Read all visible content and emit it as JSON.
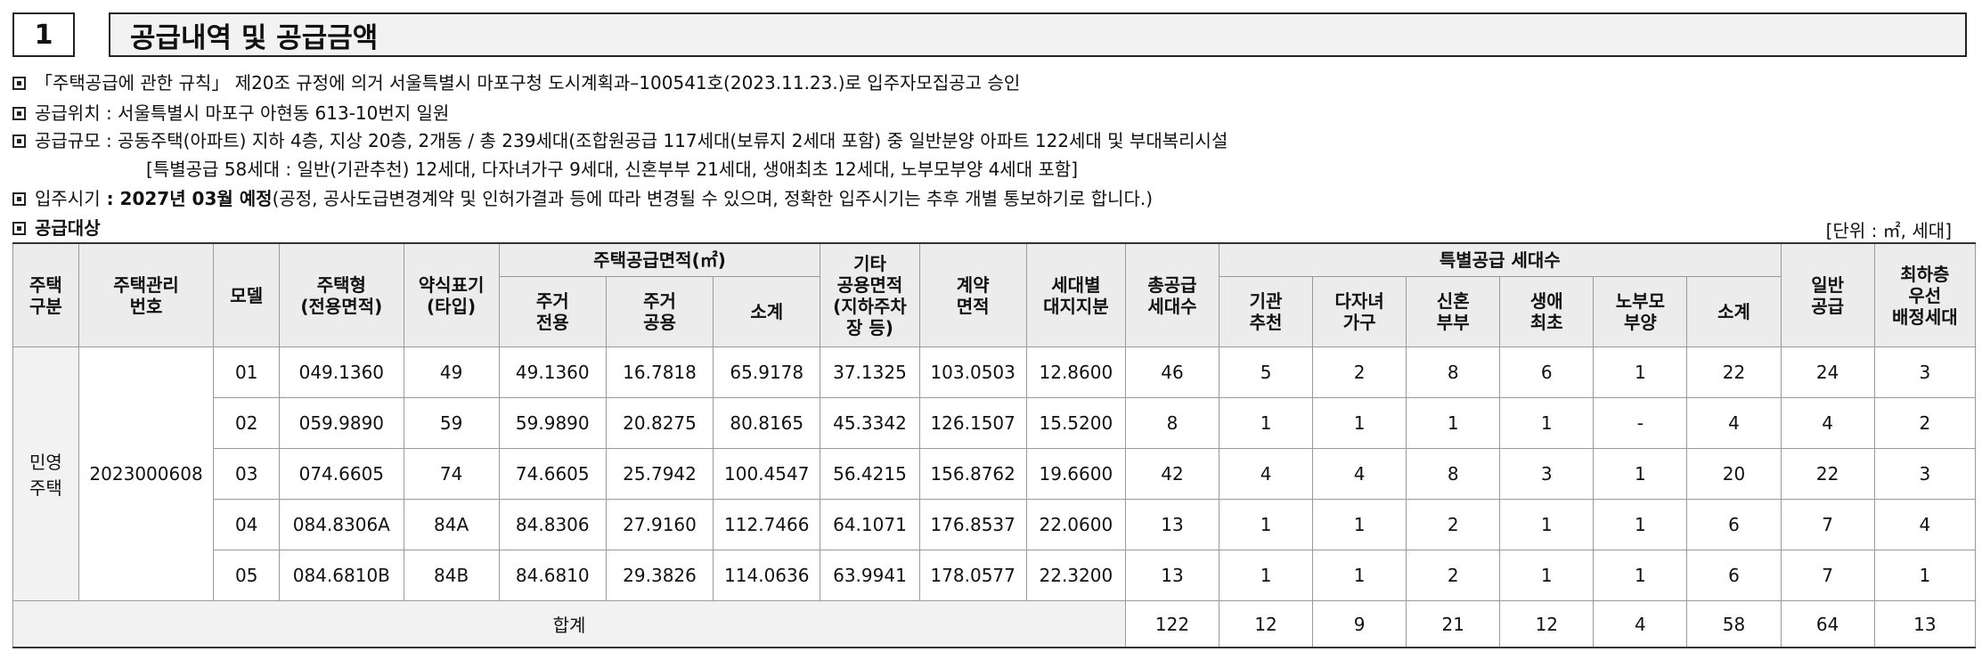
{
  "section": {
    "number": "1",
    "title": "공급내역 및 공급금액"
  },
  "info": {
    "line1": "「주택공급에 관한 규칙」 제20조 규정에 의거 서울특별시 마포구청 도시계획과–100541호(2023.11.23.)로 입주자모집공고 승인",
    "line2": "공급위치 : 서울특별시 마포구 아현동 613-10번지 일원",
    "line3": "공급규모 : 공동주택(아파트) 지하 4층, 지상 20층, 2개동   /   총 239세대(조합원공급 117세대(보류지 2세대 포함) 중 일반분양 아파트 122세대 및 부대복리시설",
    "line4": "[특별공급 58세대 : 일반(기관추천) 12세대, 다자녀가구 9세대, 신혼부부 21세대, 생애최초 12세대, 노부모부양 4세대 포함]",
    "line5_prefix": "입주시기",
    "line5_bold": " : 2027년 03월 예정",
    "line5_rest": "(공정, 공사도급변경계약 및 인허가결과 등에 따라 변경될 수 있으며, 정확한 입주시기는 추후 개별 통보하기로 합니다.)",
    "line6": "공급대상",
    "unit": "[단위 : ㎡, 세대]"
  },
  "table": {
    "headers": {
      "housing_type": "주택\n구분",
      "mgmt_no": "주택관리\n번호",
      "model": "모델",
      "housing_form": "주택형\n(전용면적)",
      "abbrev": "약식표기\n(타입)",
      "supply_area": "주택공급면적(㎡)",
      "excl": "주거\n전용",
      "common": "주거\n공용",
      "subtotal": "소계",
      "other_common": "기타\n공용면적\n(지하주차\n장 등)",
      "contract_area": "계약\n면적",
      "land_share": "세대별\n대지지분",
      "total_units": "총공급\n세대수",
      "special": "특별공급 세대수",
      "sp_inst": "기관\n추천",
      "sp_multi": "다자녀\n가구",
      "sp_newly": "신혼\n부부",
      "sp_first": "생애\n최초",
      "sp_parent": "노부모\n부양",
      "sp_subtotal": "소계",
      "general": "일반\n공급",
      "lowest_floor": "최하층\n우선\n배정세대"
    },
    "group_label": "민영\n주택",
    "mgmt_no_value": "2023000608",
    "rows": [
      {
        "model": "01",
        "form": "049.1360",
        "abbr": "49",
        "excl": "49.1360",
        "common": "16.7818",
        "sub": "65.9178",
        "other": "37.1325",
        "contract": "103.0503",
        "land": "12.8600",
        "total": "46",
        "inst": "5",
        "multi": "2",
        "newly": "8",
        "first": "6",
        "parent": "1",
        "spsub": "22",
        "general": "24",
        "lowest": "3"
      },
      {
        "model": "02",
        "form": "059.9890",
        "abbr": "59",
        "excl": "59.9890",
        "common": "20.8275",
        "sub": "80.8165",
        "other": "45.3342",
        "contract": "126.1507",
        "land": "15.5200",
        "total": "8",
        "inst": "1",
        "multi": "1",
        "newly": "1",
        "first": "1",
        "parent": "-",
        "spsub": "4",
        "general": "4",
        "lowest": "2"
      },
      {
        "model": "03",
        "form": "074.6605",
        "abbr": "74",
        "excl": "74.6605",
        "common": "25.7942",
        "sub": "100.4547",
        "other": "56.4215",
        "contract": "156.8762",
        "land": "19.6600",
        "total": "42",
        "inst": "4",
        "multi": "4",
        "newly": "8",
        "first": "3",
        "parent": "1",
        "spsub": "20",
        "general": "22",
        "lowest": "3"
      },
      {
        "model": "04",
        "form": "084.8306A",
        "abbr": "84A",
        "excl": "84.8306",
        "common": "27.9160",
        "sub": "112.7466",
        "other": "64.1071",
        "contract": "176.8537",
        "land": "22.0600",
        "total": "13",
        "inst": "1",
        "multi": "1",
        "newly": "2",
        "first": "1",
        "parent": "1",
        "spsub": "6",
        "general": "7",
        "lowest": "4"
      },
      {
        "model": "05",
        "form": "084.6810B",
        "abbr": "84B",
        "excl": "84.6810",
        "common": "29.3826",
        "sub": "114.0636",
        "other": "63.9941",
        "contract": "178.0577",
        "land": "22.3200",
        "total": "13",
        "inst": "1",
        "multi": "1",
        "newly": "2",
        "first": "1",
        "parent": "1",
        "spsub": "6",
        "general": "7",
        "lowest": "1"
      }
    ],
    "total": {
      "label": "합계",
      "total": "122",
      "inst": "12",
      "multi": "9",
      "newly": "21",
      "first": "12",
      "parent": "4",
      "spsub": "58",
      "general": "64",
      "lowest": "13"
    }
  }
}
